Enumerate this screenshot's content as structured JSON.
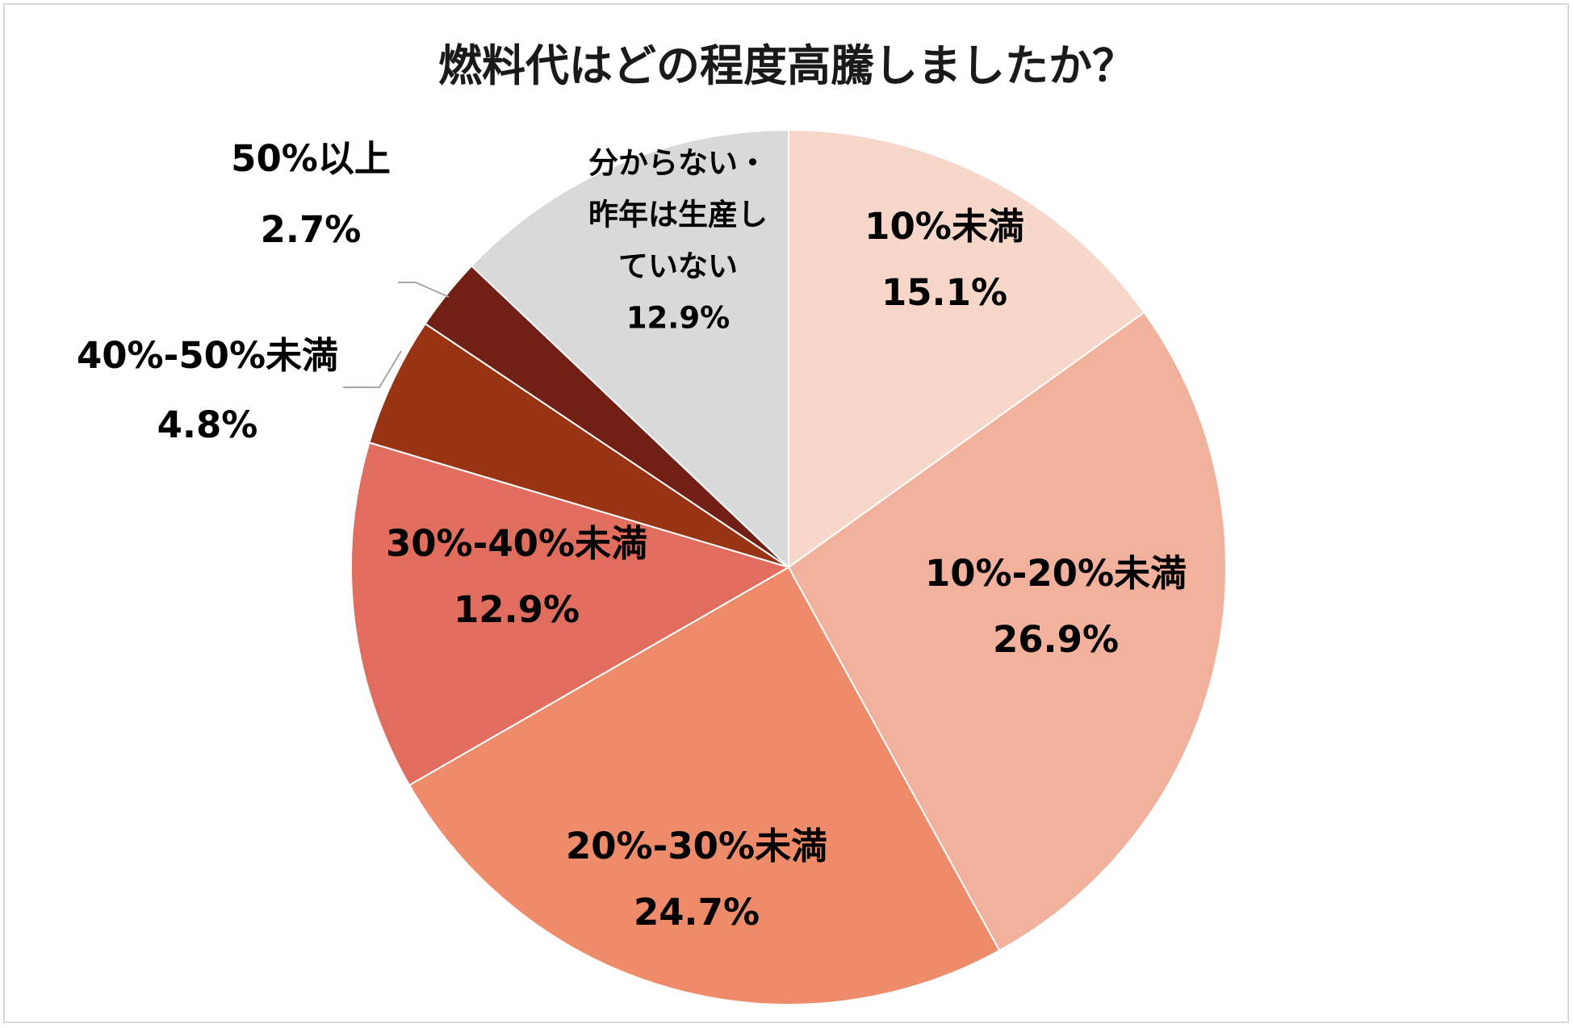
{
  "chart_data": {
    "type": "pie",
    "title": "燃料代はどの程度高騰しましたか？",
    "slices": [
      {
        "label": "10%未満",
        "label_lines": [
          "10%未満"
        ],
        "value": 15.1,
        "value_text": "15.1%",
        "color": "#F8D7CB"
      },
      {
        "label": "10%-20%未満",
        "label_lines": [
          "10%-20%未満"
        ],
        "value": 26.9,
        "value_text": "26.9%",
        "color": "#F2B19C"
      },
      {
        "label": "20%-30%未満",
        "label_lines": [
          "20%-30%未満"
        ],
        "value": 24.7,
        "value_text": "24.7%",
        "color": "#EE8B6B"
      },
      {
        "label": "30%-40%未満",
        "label_lines": [
          "30%-40%未満"
        ],
        "value": 12.9,
        "value_text": "12.9%",
        "color": "#E06D5E"
      },
      {
        "label": "40%-50%未満",
        "label_lines": [
          "40%-50%未満"
        ],
        "value": 4.8,
        "value_text": "4.8%",
        "color": "#983414"
      },
      {
        "label": "50%以上",
        "label_lines": [
          "50%以上"
        ],
        "value": 2.7,
        "value_text": "2.7%",
        "color": "#722016"
      },
      {
        "label": "分からない・昨年は生産していない",
        "label_lines": [
          "分からない・",
          "昨年は生産し",
          "ていない"
        ],
        "value": 12.9,
        "value_text": "12.9%",
        "color": "#D9D9D9"
      }
    ],
    "start_angle": "12 o'clock",
    "direction": "clockwise",
    "legend": "none",
    "leader_line_color": "#A6A6A6"
  }
}
